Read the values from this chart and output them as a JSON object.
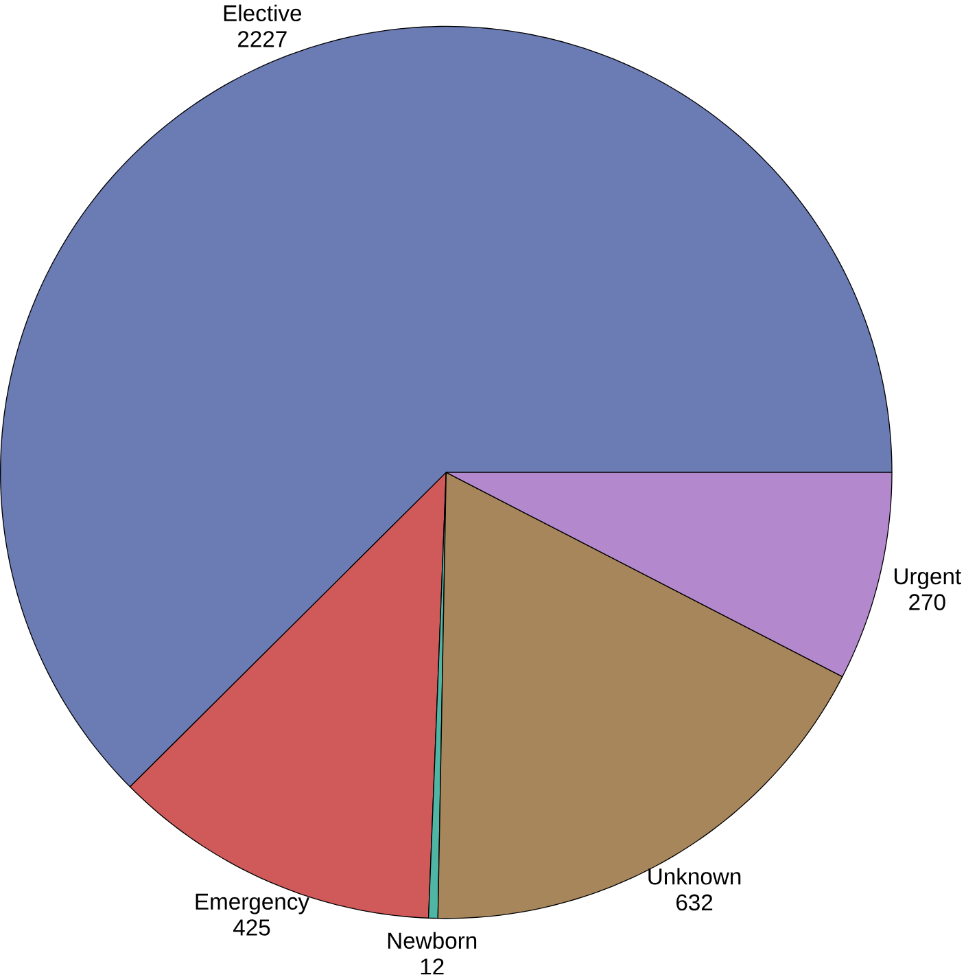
{
  "chart_data": {
    "type": "pie",
    "categories": [
      "Elective",
      "Emergency",
      "Newborn",
      "Unknown",
      "Urgent"
    ],
    "values": [
      2227,
      425,
      12,
      632,
      270
    ],
    "colors": [
      "#6b7bb3",
      "#d05a5a",
      "#4fb5a5",
      "#a8865c",
      "#b388cc"
    ],
    "data_labels": true
  }
}
